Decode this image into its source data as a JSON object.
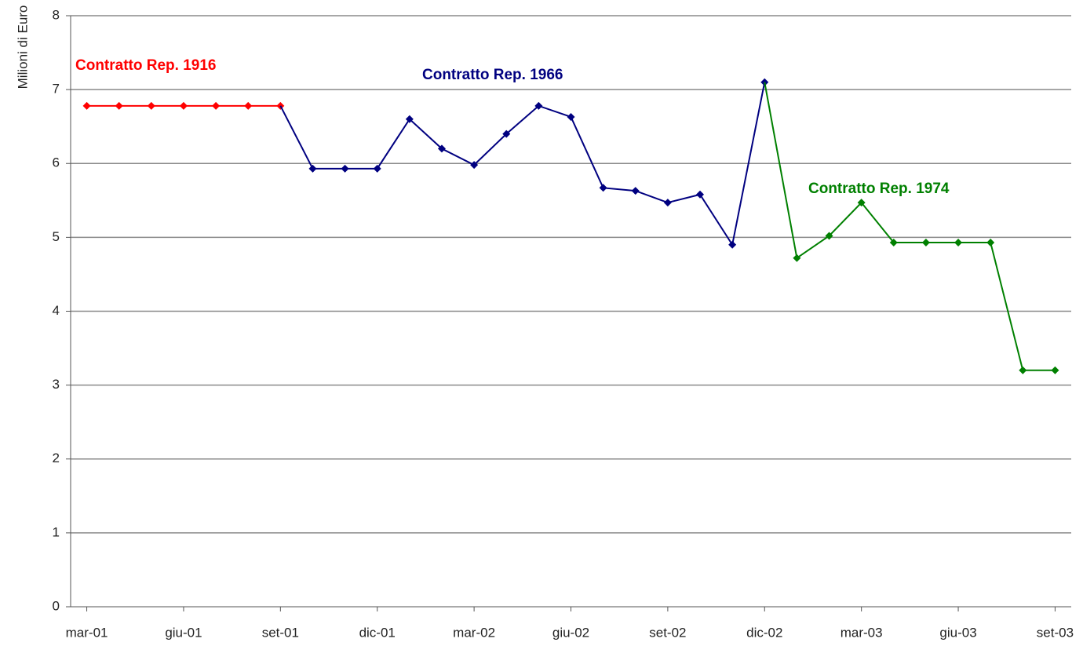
{
  "chart_data": {
    "type": "line",
    "y_label": "Milioni di Euro",
    "categories": [
      "mar-01",
      null,
      null,
      "giu-01",
      null,
      null,
      "set-01",
      null,
      null,
      "dic-01",
      null,
      null,
      "mar-02",
      null,
      null,
      "giu-02",
      null,
      null,
      "set-02",
      null,
      null,
      "dic-02",
      null,
      null,
      "mar-03",
      null,
      null,
      "giu-03",
      null,
      null,
      "set-03"
    ],
    "series": [
      {
        "name": "Contratto Rep. 1916",
        "color": "#ff0000",
        "values": [
          6.78,
          6.78,
          6.78,
          6.78,
          6.78,
          6.78,
          6.78,
          null,
          null,
          null,
          null,
          null,
          null,
          null,
          null,
          null,
          null,
          null,
          null,
          null,
          null,
          null,
          null,
          null,
          null,
          null,
          null,
          null,
          null,
          null,
          null
        ]
      },
      {
        "name": "Contratto Rep. 1966",
        "color": "#000080",
        "values": [
          null,
          null,
          null,
          null,
          null,
          null,
          null,
          5.93,
          5.93,
          5.93,
          6.6,
          6.2,
          5.98,
          6.4,
          6.78,
          6.63,
          5.67,
          5.63,
          5.47,
          5.58,
          4.9,
          7.1,
          null,
          null,
          null,
          null,
          null,
          null,
          null,
          null,
          null
        ]
      },
      {
        "name": "Contratto Rep. 1974",
        "color": "#008000",
        "values": [
          null,
          null,
          null,
          null,
          null,
          null,
          null,
          null,
          null,
          null,
          null,
          null,
          null,
          null,
          null,
          null,
          null,
          null,
          null,
          null,
          null,
          null,
          4.72,
          5.02,
          5.47,
          4.93,
          4.93,
          4.93,
          4.93,
          3.2,
          3.2
        ]
      }
    ],
    "ylim": [
      0,
      8
    ],
    "yticks": [
      0,
      1,
      2,
      3,
      4,
      5,
      6,
      7,
      8
    ],
    "grid": true
  }
}
